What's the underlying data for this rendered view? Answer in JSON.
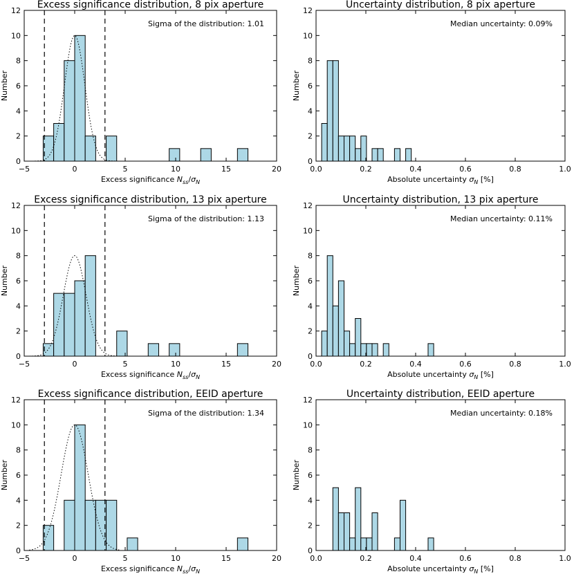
{
  "chart_data": [
    {
      "type": "bar",
      "title": "Excess significance distribution, 8 pix aperture",
      "xlabel": "Excess significance",
      "xlabel_math": {
        "N": "N",
        "sub1": "ss",
        "slash": "/",
        "sigma": "σ",
        "sub2": "N"
      },
      "ylabel": "Number",
      "xlim": [
        -5,
        20
      ],
      "ylim": [
        0,
        12
      ],
      "xticks": [
        "−5",
        "0",
        "5",
        "10",
        "15",
        "20"
      ],
      "yticks": [
        "0",
        "2",
        "4",
        "6",
        "8",
        "10",
        "12"
      ],
      "bin_width": 1.04,
      "bins": [
        {
          "start": -3.12,
          "count": 2
        },
        {
          "start": -2.08,
          "count": 3
        },
        {
          "start": -1.04,
          "count": 8
        },
        {
          "start": 0.0,
          "count": 10
        },
        {
          "start": 1.04,
          "count": 2
        },
        {
          "start": 3.12,
          "count": 2
        },
        {
          "start": 9.36,
          "count": 1
        },
        {
          "start": 12.48,
          "count": 1
        },
        {
          "start": 16.12,
          "count": 1
        }
      ],
      "vlines": [
        -3,
        3
      ],
      "gaussian": {
        "amplitude": 10,
        "mean": 0,
        "sigma": 1.01
      },
      "annotation": "Sigma of the distribution: 1.01"
    },
    {
      "type": "bar",
      "title": "Uncertainty distribution, 8 pix aperture",
      "xlabel": "Absolute uncertainty",
      "xlabel_math": {
        "sigma": "σ",
        "sub": "N",
        "unit": "[%]"
      },
      "ylabel": "Number",
      "xlim": [
        0,
        1.0
      ],
      "ylim": [
        0,
        12
      ],
      "xticks": [
        "0.0",
        "0.2",
        "0.4",
        "0.6",
        "0.8",
        "1.0"
      ],
      "yticks": [
        "0",
        "2",
        "4",
        "6",
        "8",
        "10",
        "12"
      ],
      "bin_width": 0.0225,
      "bins": [
        {
          "start": 0.0225,
          "count": 3
        },
        {
          "start": 0.045,
          "count": 8
        },
        {
          "start": 0.0675,
          "count": 8
        },
        {
          "start": 0.09,
          "count": 2
        },
        {
          "start": 0.1125,
          "count": 2
        },
        {
          "start": 0.135,
          "count": 2
        },
        {
          "start": 0.1575,
          "count": 1
        },
        {
          "start": 0.18,
          "count": 2
        },
        {
          "start": 0.225,
          "count": 1
        },
        {
          "start": 0.2475,
          "count": 1
        },
        {
          "start": 0.315,
          "count": 1
        },
        {
          "start": 0.36,
          "count": 1
        }
      ],
      "annotation": "Median uncertainty: 0.09%"
    },
    {
      "type": "bar",
      "title": "Excess significance distribution, 13 pix aperture",
      "xlabel": "Excess significance",
      "xlabel_math": {
        "N": "N",
        "sub1": "ss",
        "slash": "/",
        "sigma": "σ",
        "sub2": "N"
      },
      "ylabel": "Number",
      "xlim": [
        -5,
        20
      ],
      "ylim": [
        0,
        12
      ],
      "xticks": [
        "−5",
        "0",
        "5",
        "10",
        "15",
        "20"
      ],
      "yticks": [
        "0",
        "2",
        "4",
        "6",
        "8",
        "10",
        "12"
      ],
      "bin_width": 1.04,
      "bins": [
        {
          "start": -3.12,
          "count": 1
        },
        {
          "start": -2.08,
          "count": 5
        },
        {
          "start": -1.04,
          "count": 5
        },
        {
          "start": 0.0,
          "count": 6
        },
        {
          "start": 1.04,
          "count": 8
        },
        {
          "start": 4.16,
          "count": 2
        },
        {
          "start": 7.28,
          "count": 1
        },
        {
          "start": 9.36,
          "count": 1
        },
        {
          "start": 16.12,
          "count": 1
        }
      ],
      "vlines": [
        -3,
        3
      ],
      "gaussian": {
        "amplitude": 8,
        "mean": 0,
        "sigma": 1.13
      },
      "annotation": "Sigma of the distribution: 1.13"
    },
    {
      "type": "bar",
      "title": "Uncertainty distribution, 13 pix aperture",
      "xlabel": "Absolute uncertainty",
      "xlabel_math": {
        "sigma": "σ",
        "sub": "N",
        "unit": "[%]"
      },
      "ylabel": "Number",
      "xlim": [
        0,
        1.0
      ],
      "ylim": [
        0,
        12
      ],
      "xticks": [
        "0.0",
        "0.2",
        "0.4",
        "0.6",
        "0.8",
        "1.0"
      ],
      "yticks": [
        "0",
        "2",
        "4",
        "6",
        "8",
        "10",
        "12"
      ],
      "bin_width": 0.0225,
      "bins": [
        {
          "start": 0.0225,
          "count": 2
        },
        {
          "start": 0.045,
          "count": 8
        },
        {
          "start": 0.0675,
          "count": 4
        },
        {
          "start": 0.09,
          "count": 6
        },
        {
          "start": 0.1125,
          "count": 2
        },
        {
          "start": 0.135,
          "count": 1
        },
        {
          "start": 0.1575,
          "count": 3
        },
        {
          "start": 0.18,
          "count": 1
        },
        {
          "start": 0.2025,
          "count": 1
        },
        {
          "start": 0.225,
          "count": 1
        },
        {
          "start": 0.27,
          "count": 1
        },
        {
          "start": 0.45,
          "count": 1
        }
      ],
      "annotation": "Median uncertainty: 0.11%"
    },
    {
      "type": "bar",
      "title": "Excess significance distribution, EEID aperture",
      "xlabel": "Excess significance",
      "xlabel_math": {
        "N": "N",
        "sub1": "ss",
        "slash": "/",
        "sigma": "σ",
        "sub2": "N"
      },
      "ylabel": "Number",
      "xlim": [
        -5,
        20
      ],
      "ylim": [
        0,
        12
      ],
      "xticks": [
        "−5",
        "0",
        "5",
        "10",
        "15",
        "20"
      ],
      "yticks": [
        "0",
        "2",
        "4",
        "6",
        "8",
        "10",
        "12"
      ],
      "bin_width": 1.04,
      "bins": [
        {
          "start": -3.12,
          "count": 2
        },
        {
          "start": -1.04,
          "count": 4
        },
        {
          "start": 0.0,
          "count": 10
        },
        {
          "start": 1.04,
          "count": 4
        },
        {
          "start": 2.08,
          "count": 4
        },
        {
          "start": 3.12,
          "count": 4
        },
        {
          "start": 5.2,
          "count": 1
        },
        {
          "start": 16.12,
          "count": 1
        }
      ],
      "vlines": [
        -3,
        3
      ],
      "gaussian": {
        "amplitude": 10,
        "mean": 0,
        "sigma": 1.34
      },
      "annotation": "Sigma of the distribution: 1.34"
    },
    {
      "type": "bar",
      "title": "Uncertainty distribution, EEID aperture",
      "xlabel": "Absolute uncertainty",
      "xlabel_math": {
        "sigma": "σ",
        "sub": "N",
        "unit": "[%]"
      },
      "ylabel": "Number",
      "xlim": [
        0,
        1.0
      ],
      "ylim": [
        0,
        12
      ],
      "xticks": [
        "0.0",
        "0.2",
        "0.4",
        "0.6",
        "0.8",
        "1.0"
      ],
      "yticks": [
        "0",
        "2",
        "4",
        "6",
        "8",
        "10",
        "12"
      ],
      "bin_width": 0.0225,
      "bins": [
        {
          "start": 0.0675,
          "count": 5
        },
        {
          "start": 0.09,
          "count": 3
        },
        {
          "start": 0.1125,
          "count": 3
        },
        {
          "start": 0.135,
          "count": 1
        },
        {
          "start": 0.1575,
          "count": 5
        },
        {
          "start": 0.18,
          "count": 1
        },
        {
          "start": 0.2025,
          "count": 1
        },
        {
          "start": 0.225,
          "count": 3
        },
        {
          "start": 0.315,
          "count": 1
        },
        {
          "start": 0.3375,
          "count": 4
        },
        {
          "start": 0.45,
          "count": 1
        }
      ],
      "annotation": "Median uncertainty: 0.18%"
    }
  ]
}
